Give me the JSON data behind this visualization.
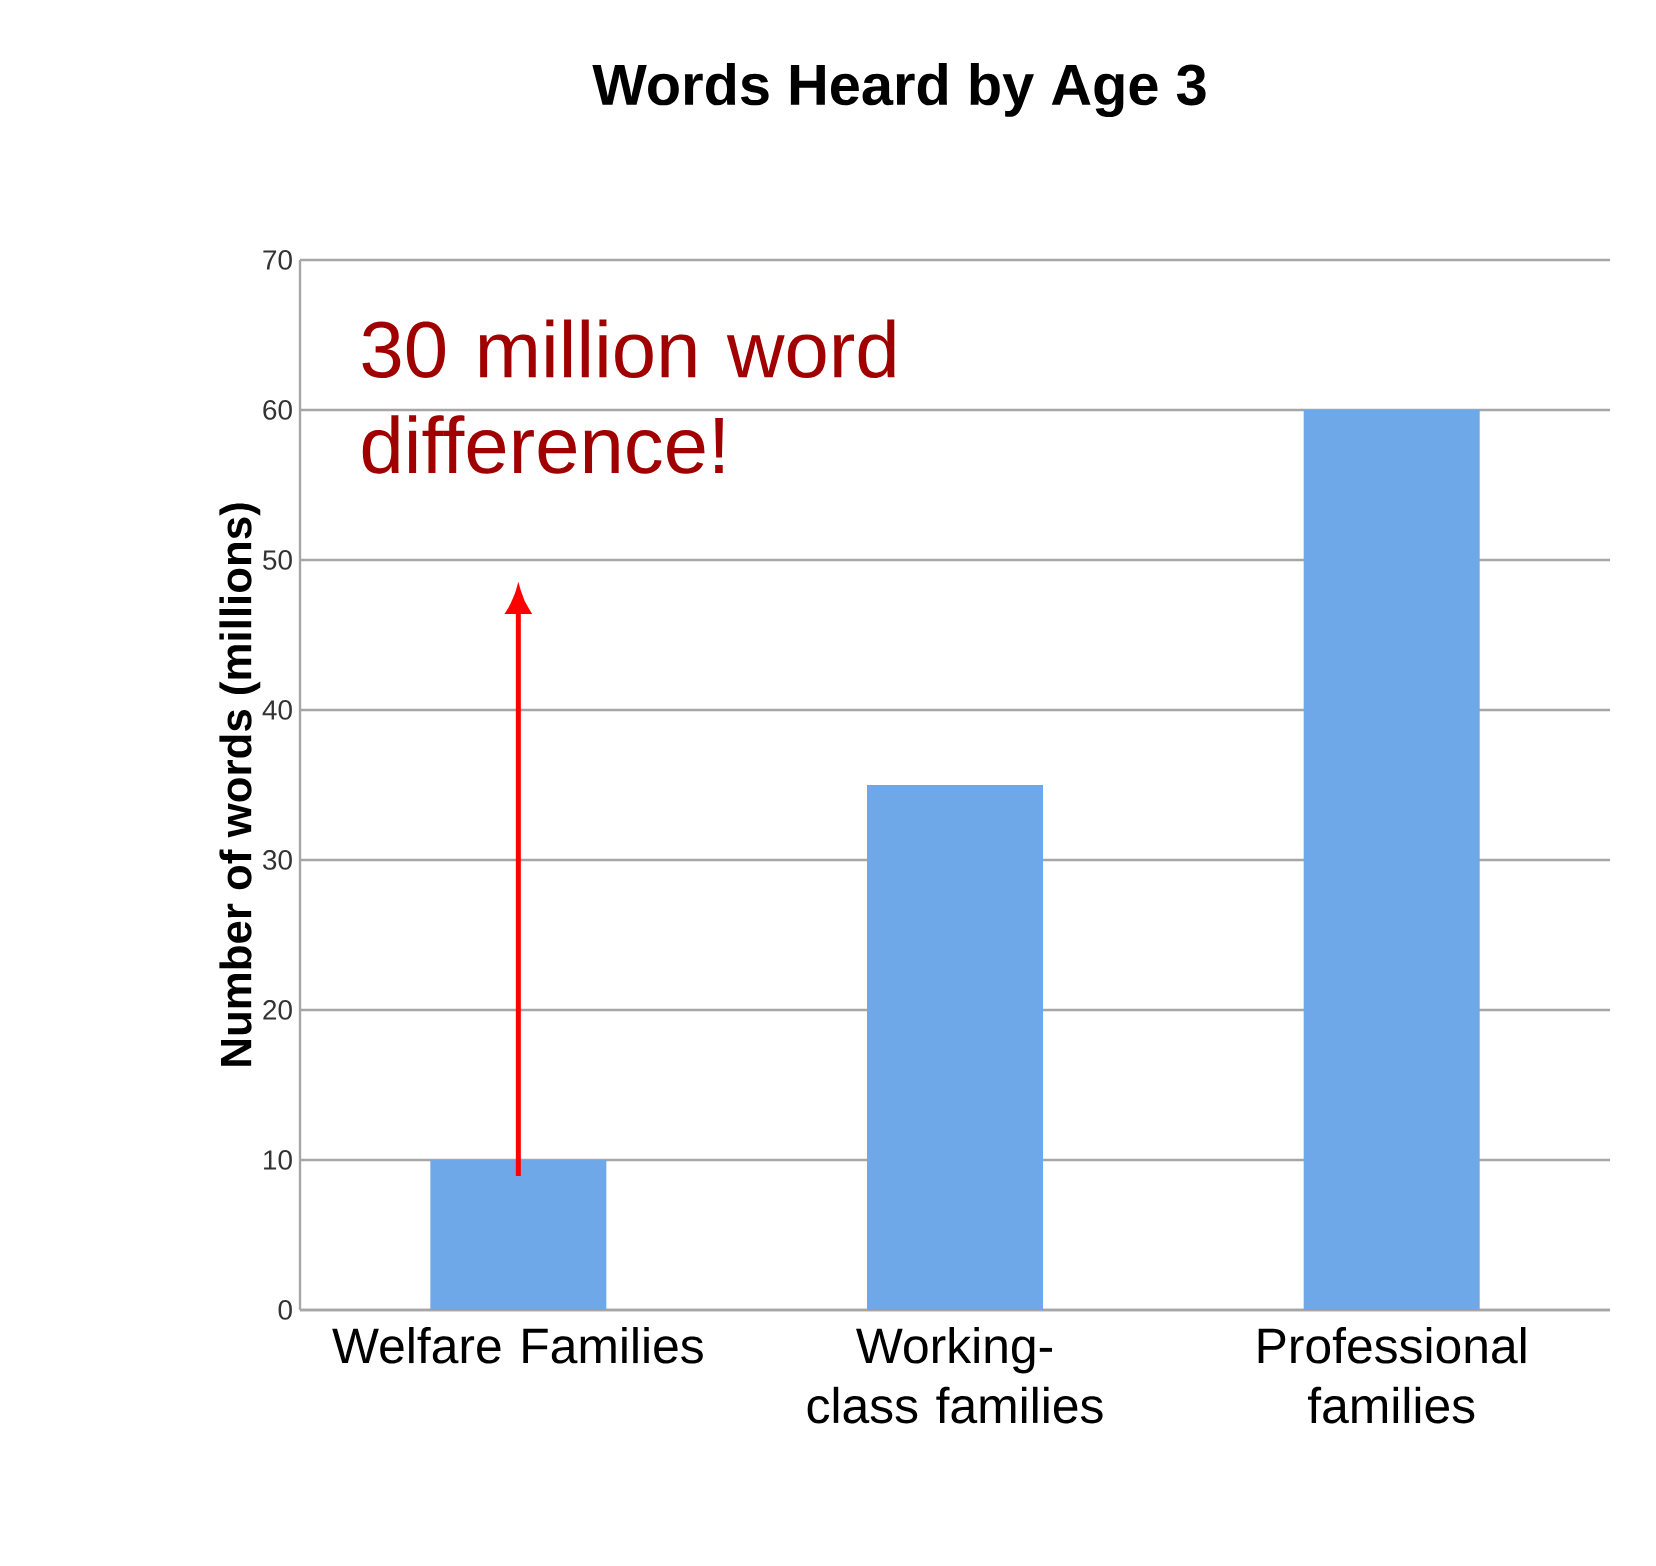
{
  "chart_data": {
    "type": "bar",
    "title": "Words Heard by Age 3",
    "ylabel": "Number of words (millions)",
    "categories": [
      "Welfare Families",
      "Working-class families",
      "Professional families"
    ],
    "values": [
      10,
      35,
      60
    ],
    "color": "#6fa8e8",
    "ylim": [
      0,
      70
    ],
    "yticks": [
      0,
      10,
      20,
      30,
      40,
      50,
      60,
      70
    ],
    "grid": "y",
    "annotations": [
      "30 million word difference!"
    ]
  }
}
